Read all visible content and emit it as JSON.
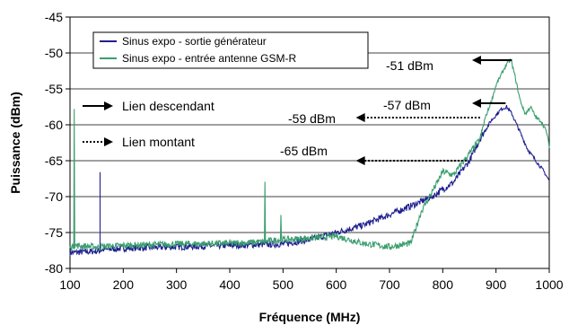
{
  "chart_data": {
    "type": "line",
    "title": "",
    "xlabel": "Fréquence (MHz)",
    "ylabel": "Puissance (dBm)",
    "xlim": [
      100,
      1000
    ],
    "ylim": [
      -80,
      -45
    ],
    "x_ticks": [
      100,
      200,
      300,
      400,
      500,
      600,
      700,
      800,
      900,
      1000
    ],
    "y_ticks": [
      -45,
      -50,
      -55,
      -60,
      -65,
      -70,
      -75,
      -80
    ],
    "grid": "horizontal",
    "legend": {
      "position": "top-left"
    },
    "colors": {
      "blue": "#1f1f8f",
      "green": "#3a9e6e"
    },
    "series": [
      {
        "name": "Sinus expo - sortie générateur",
        "color": "#1f1f8f",
        "x": [
          100,
          150,
          156,
          156.5,
          157,
          160,
          200,
          300,
          400,
          500,
          550,
          600,
          650,
          700,
          750,
          780,
          800,
          820,
          850,
          870,
          890,
          910,
          920,
          930,
          945,
          960,
          975,
          990,
          1000
        ],
        "y": [
          -77.8,
          -77.6,
          -77.5,
          -66.6,
          -77.5,
          -77.4,
          -77.2,
          -77.0,
          -76.8,
          -76.6,
          -76.0,
          -75.0,
          -74.0,
          -72.5,
          -71.0,
          -70.0,
          -69.0,
          -68.0,
          -65.0,
          -62.0,
          -59.5,
          -57.8,
          -57.5,
          -58.5,
          -61.0,
          -63.5,
          -65.0,
          -66.5,
          -67.8
        ]
      },
      {
        "name": "Sinus expo - entrée antenne GSM-R",
        "color": "#3a9e6e",
        "x": [
          100,
          105,
          107,
          108,
          109,
          150,
          200,
          300,
          400,
          460,
          465,
          466,
          467,
          470,
          495,
          496,
          497,
          500,
          550,
          600,
          650,
          700,
          740,
          760,
          790,
          800,
          820,
          850,
          870,
          880,
          890,
          900,
          910,
          920,
          928,
          935,
          945,
          955,
          965,
          975,
          985,
          995,
          1000
        ],
        "y": [
          -77.0,
          -77.0,
          -76.8,
          -57.8,
          -76.8,
          -77.0,
          -76.8,
          -76.6,
          -76.5,
          -76.3,
          -76.3,
          -68.2,
          -76.3,
          -76.2,
          -76.0,
          -72.5,
          -76.0,
          -76.0,
          -75.8,
          -75.5,
          -76.5,
          -77.0,
          -76.5,
          -72.0,
          -68.0,
          -66.5,
          -67.0,
          -64.0,
          -62.0,
          -59.0,
          -57.0,
          -54.5,
          -53.0,
          -51.5,
          -51.0,
          -53.0,
          -56.5,
          -58.5,
          -57.5,
          -59.0,
          -59.5,
          -61.0,
          -63.0
        ]
      }
    ],
    "annotations": [
      {
        "text": "Lien descendant",
        "style": "solid",
        "kind": "legend"
      },
      {
        "text": "Lien montant",
        "style": "dotted",
        "kind": "legend"
      },
      {
        "text": "-51 dBm",
        "style": "solid",
        "arrow_from_x": 930,
        "arrow_to_x": 855,
        "y": -51
      },
      {
        "text": "-57 dBm",
        "style": "solid",
        "arrow_from_x": 918,
        "arrow_to_x": 855,
        "y": -57
      },
      {
        "text": "-59 dBm",
        "style": "dotted",
        "arrow_from_x": 870,
        "arrow_to_x": 637,
        "y": -59
      },
      {
        "text": "-65 dBm",
        "style": "dotted",
        "arrow_from_x": 845,
        "arrow_to_x": 637,
        "y": -65
      }
    ]
  }
}
